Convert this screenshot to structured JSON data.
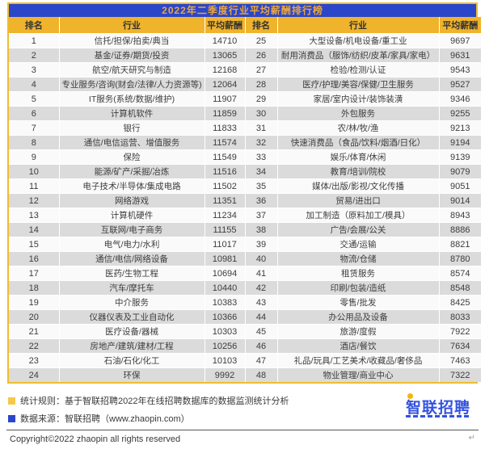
{
  "chart_data": {
    "type": "table",
    "title": "2022年二季度行业平均薪酬排行榜",
    "columns": [
      "排名",
      "行业",
      "平均薪酬",
      "排名",
      "行业",
      "平均薪酬"
    ],
    "rows": [
      [
        1,
        "信托/担保/拍卖/典当",
        14710,
        25,
        "大型设备/机电设备/重工业",
        9697
      ],
      [
        2,
        "基金/证券/期货/投资",
        13065,
        26,
        "耐用消费品（服饰/纺织/皮革/家具/家电）",
        9631
      ],
      [
        3,
        "航空/航天研究与制造",
        12168,
        27,
        "检验/检测/认证",
        9543
      ],
      [
        4,
        "专业服务/咨询(财会/法律/人力资源等)",
        12064,
        28,
        "医疗/护理/美容/保健/卫生服务",
        9527
      ],
      [
        5,
        "IT服务(系统/数据/维护)",
        11907,
        29,
        "家居/室内设计/装饰装潢",
        9346
      ],
      [
        6,
        "计算机软件",
        11859,
        30,
        "外包服务",
        9255
      ],
      [
        7,
        "银行",
        11833,
        31,
        "农/林/牧/渔",
        9213
      ],
      [
        8,
        "通信/电信运营、增值服务",
        11574,
        32,
        "快速消费品（食品/饮料/烟酒/日化）",
        9194
      ],
      [
        9,
        "保险",
        11549,
        33,
        "娱乐/体育/休闲",
        9139
      ],
      [
        10,
        "能源/矿产/采掘/冶炼",
        11516,
        34,
        "教育/培训/院校",
        9079
      ],
      [
        11,
        "电子技术/半导体/集成电路",
        11502,
        35,
        "媒体/出版/影视/文化传播",
        9051
      ],
      [
        12,
        "网络游戏",
        11351,
        36,
        "贸易/进出口",
        9014
      ],
      [
        13,
        "计算机硬件",
        11234,
        37,
        "加工制造（原料加工/模具）",
        8943
      ],
      [
        14,
        "互联网/电子商务",
        11155,
        38,
        "广告/会展/公关",
        8886
      ],
      [
        15,
        "电气/电力/水利",
        11017,
        39,
        "交通/运输",
        8821
      ],
      [
        16,
        "通信/电信/网络设备",
        10981,
        40,
        "物流/仓储",
        8780
      ],
      [
        17,
        "医药/生物工程",
        10694,
        41,
        "租赁服务",
        8574
      ],
      [
        18,
        "汽车/摩托车",
        10440,
        42,
        "印刷/包装/造纸",
        8548
      ],
      [
        19,
        "中介服务",
        10383,
        43,
        "零售/批发",
        8425
      ],
      [
        20,
        "仪器仪表及工业自动化",
        10366,
        44,
        "办公用品及设备",
        8033
      ],
      [
        21,
        "医疗设备/器械",
        10303,
        45,
        "旅游/度假",
        7922
      ],
      [
        22,
        "房地产/建筑/建材/工程",
        10256,
        46,
        "酒店/餐饮",
        7634
      ],
      [
        23,
        "石油/石化/化工",
        10103,
        47,
        "礼品/玩具/工艺美术/收藏品/奢侈品",
        7463
      ],
      [
        24,
        "环保",
        9992,
        48,
        "物业管理/商业中心",
        7322
      ]
    ]
  },
  "footer": {
    "legend": [
      {
        "color": "#F6C74B",
        "text": "统计规则：基于智联招聘2022年在线招聘数据库的数据监测统计分析"
      },
      {
        "color": "#2B46C9",
        "text": "数据来源：智联招聘（www.zhaopin.com）"
      }
    ],
    "logo_text": "智联招聘",
    "copyright": "Copyright©2022 zhaopin all rights reserved",
    "return_mark": "↵"
  },
  "colors": {
    "title_bg": "#2B46C9",
    "title_text": "#E9A640",
    "header_bg": "#F0B32C",
    "row_even": "#DBDBDB",
    "row_odd": "#FAFAFA",
    "table_border": "#EFBD30",
    "logo_blue": "#3352E0",
    "logo_dot_yellow": "#F5B50A"
  }
}
